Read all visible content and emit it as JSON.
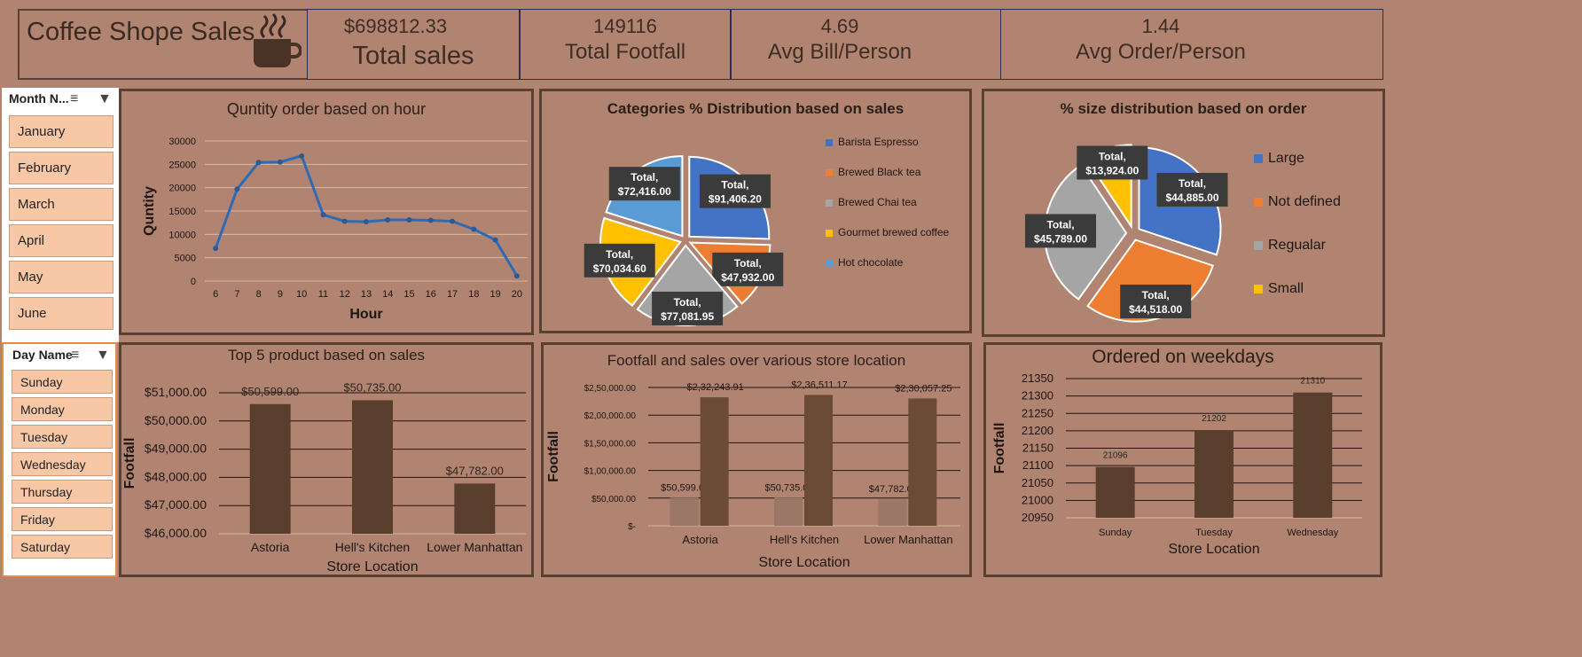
{
  "header": {
    "title": "Coffee Shope Sales",
    "kpis": [
      {
        "value": "$698812.33",
        "label": "Total sales"
      },
      {
        "value": "149116",
        "label": "Total Footfall"
      },
      {
        "value": "4.69",
        "label": "Avg Bill/Person"
      },
      {
        "value": "1.44",
        "label": "Avg Order/Person"
      }
    ]
  },
  "slicers": {
    "month": {
      "title": "Month N...",
      "items": [
        "January",
        "February",
        "March",
        "April",
        "May",
        "June"
      ]
    },
    "day": {
      "title": "Day Name",
      "items": [
        "Sunday",
        "Monday",
        "Tuesday",
        "Wednesday",
        "Thursday",
        "Friday",
        "Saturday"
      ]
    }
  },
  "colors": {
    "background": "#b08470",
    "border": "#5a4030",
    "bar": "#5a3e2e",
    "line": "#2e6bb5",
    "pie": [
      "#4472c4",
      "#ed7d31",
      "#a5a5a5",
      "#ffc000",
      "#5b9bd5"
    ]
  },
  "chart_data": [
    {
      "id": "hourly",
      "type": "line",
      "title": "Quntity order based on hour",
      "xlabel": "Hour",
      "ylabel": "Quntity",
      "x": [
        6,
        7,
        8,
        9,
        10,
        11,
        12,
        13,
        14,
        15,
        16,
        17,
        18,
        19,
        20
      ],
      "values": [
        7000,
        19700,
        25400,
        25500,
        26800,
        14200,
        12800,
        12700,
        13100,
        13100,
        13000,
        12800,
        11100,
        8800,
        1100
      ],
      "ylim": [
        0,
        30000
      ],
      "yticks": [
        "0",
        "5000",
        "10000",
        "15000",
        "20000",
        "25000",
        "30000"
      ],
      "grid": true
    },
    {
      "id": "categories",
      "type": "pie",
      "title": "Categories % Distribution based on sales",
      "legend": [
        "Barista Espresso",
        "Brewed Black tea",
        "Brewed Chai tea",
        "Gourmet brewed coffee",
        "Hot chocolate"
      ],
      "values": [
        91406.2,
        47932,
        77081.95,
        70034.6,
        72416
      ],
      "labels": [
        "Total,\n$91,406.20",
        "Total,\n$47,932.00",
        "Total,\n$77,081.95",
        "Total,\n$70,034.60",
        "Total,\n$72,416.00"
      ],
      "legend_position": "right"
    },
    {
      "id": "sizes",
      "type": "pie",
      "title": "% size distribution based on order",
      "legend": [
        "Large",
        "Not defined",
        "Regualar",
        "Small"
      ],
      "values": [
        44885,
        44518,
        45789,
        13924
      ],
      "labels": [
        "Total,\n$44,885.00",
        "Total,\n$44,518.00",
        "Total,\n$45,789.00",
        "Total,\n$13,924.00"
      ],
      "legend_position": "right"
    },
    {
      "id": "top5",
      "type": "bar",
      "title": "Top 5 product based on sales",
      "xlabel": "Store Location",
      "ylabel": "Footfall",
      "categories": [
        "Astoria",
        "Hell's Kitchen",
        "Lower Manhattan"
      ],
      "values": [
        50599,
        50735,
        47782
      ],
      "labels": [
        "$50,599.00",
        "$50,735.00",
        "$47,782.00"
      ],
      "ylim": [
        46000,
        51000
      ],
      "yticks": [
        "$46,000.00",
        "$47,000.00",
        "$48,000.00",
        "$49,000.00",
        "$50,000.00",
        "$51,000.00"
      ],
      "grid": true
    },
    {
      "id": "locations",
      "type": "bar",
      "title": "Footfall and sales over various store location",
      "xlabel": "Store Location",
      "ylabel": "Footfall",
      "categories": [
        "Astoria",
        "Hell's Kitchen",
        "Lower Manhattan"
      ],
      "series": [
        {
          "values": [
            50599,
            50735,
            47782
          ],
          "labels": [
            "$50,599.00",
            "$50,735.00",
            "$47,782.00"
          ]
        },
        {
          "values": [
            232243.91,
            236511.17,
            230057.25
          ],
          "labels": [
            "$2,32,243.91",
            "$2,36,511.17",
            "$2,30,057.25"
          ]
        }
      ],
      "ylim": [
        0,
        250000
      ],
      "yticks": [
        "$-",
        "$50,000.00",
        "$1,00,000.00",
        "$1,50,000.00",
        "$2,00,000.00",
        "$2,50,000.00"
      ],
      "grid": true
    },
    {
      "id": "weekdays",
      "type": "bar",
      "title": "Ordered on weekdays",
      "xlabel": "Store Location",
      "ylabel": "Footfall",
      "categories": [
        "Sunday",
        "Tuesday",
        "Wednesday"
      ],
      "values": [
        21096,
        21202,
        21310
      ],
      "labels": [
        "21096",
        "21202",
        "21310"
      ],
      "ylim": [
        20950,
        21350
      ],
      "yticks": [
        "20950",
        "21000",
        "21050",
        "21100",
        "21150",
        "21200",
        "21250",
        "21300",
        "21350"
      ],
      "grid": true
    }
  ]
}
